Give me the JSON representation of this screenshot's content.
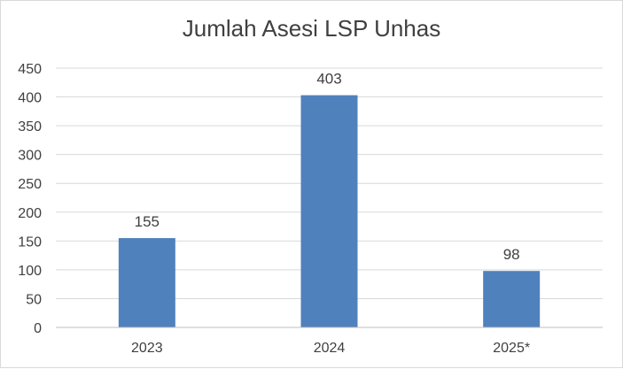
{
  "chart_data": {
    "type": "bar",
    "title": "Jumlah Asesi LSP Unhas",
    "categories": [
      "2023",
      "2024",
      "2025*"
    ],
    "values": [
      155,
      403,
      98
    ],
    "ylim": [
      0,
      450
    ],
    "yticks": [
      0,
      50,
      100,
      150,
      200,
      250,
      300,
      350,
      400,
      450
    ],
    "grid": true,
    "legend": "none",
    "colors": {
      "bar": "#4f81bd",
      "grid": "#d9d9d9",
      "text": "#404040"
    }
  }
}
